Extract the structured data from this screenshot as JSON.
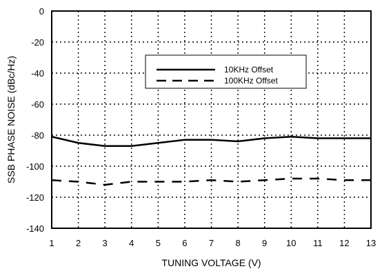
{
  "chart_data": {
    "type": "line",
    "xlabel": "TUNING VOLTAGE (V)",
    "ylabel": "SSB PHASE NOISE (dBc/Hz)",
    "xlim": [
      1,
      13
    ],
    "ylim": [
      -140,
      0
    ],
    "x_ticks": [
      1,
      2,
      3,
      4,
      5,
      6,
      7,
      8,
      9,
      10,
      11,
      12,
      13
    ],
    "y_ticks": [
      0,
      -20,
      -40,
      -60,
      -80,
      -100,
      -120,
      -140
    ],
    "grid": true,
    "grid_style": "dotted",
    "legend_position": "top-right",
    "x": [
      1,
      2,
      3,
      4,
      5,
      6,
      7,
      8,
      9,
      10,
      11,
      12,
      13
    ],
    "series": [
      {
        "name": "10KHz Offset",
        "line_style": "solid",
        "values": [
          -81,
          -85,
          -87,
          -87,
          -85,
          -83,
          -83,
          -84,
          -82,
          -81,
          -82,
          -82,
          -82
        ]
      },
      {
        "name": "100KHz Offset",
        "line_style": "dashed",
        "values": [
          -109,
          -110,
          -112,
          -110,
          -110,
          -110,
          -109,
          -110,
          -109,
          -108,
          -108,
          -109,
          -109
        ]
      }
    ]
  }
}
